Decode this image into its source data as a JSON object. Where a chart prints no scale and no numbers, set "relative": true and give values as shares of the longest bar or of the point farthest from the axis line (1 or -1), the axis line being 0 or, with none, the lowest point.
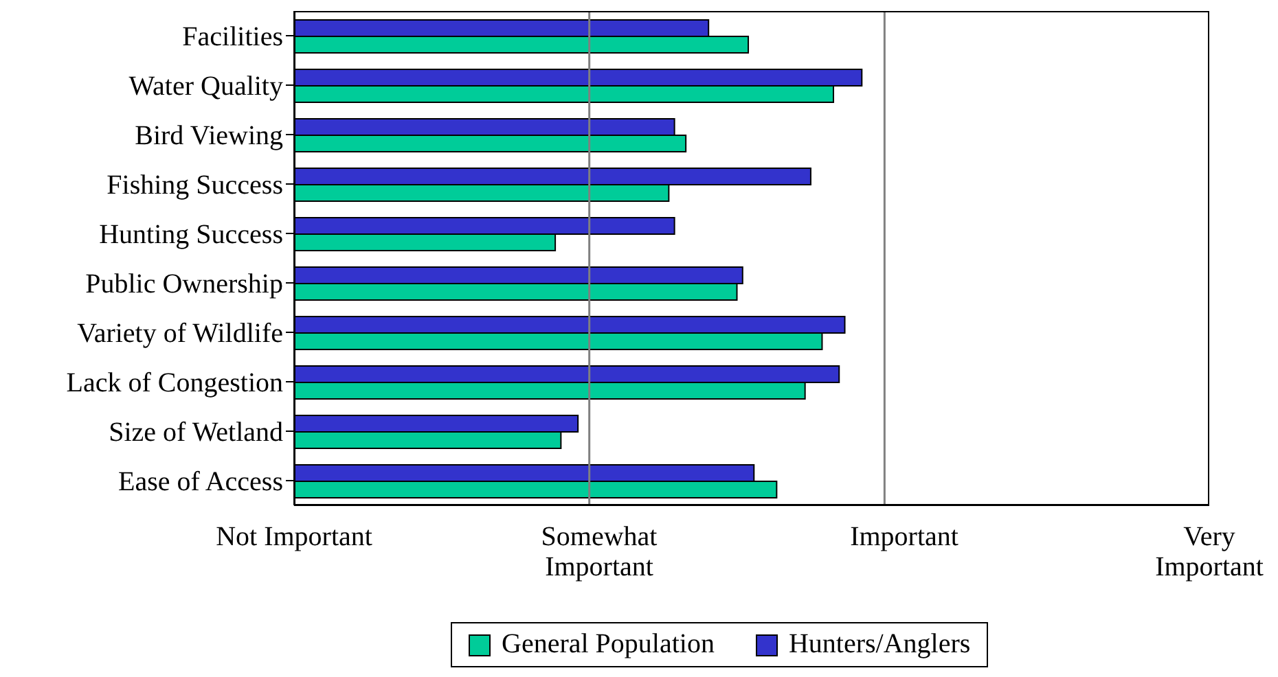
{
  "chart_data": {
    "type": "bar",
    "orientation": "horizontal",
    "relative": true,
    "categories": [
      "Facilities",
      "Water Quality",
      "Bird Viewing",
      "Fishing Success",
      "Hunting Success",
      "Public Ownership",
      "Variety of Wildlife",
      "Lack of Congestion",
      "Size of Wetland",
      "Ease of Access"
    ],
    "series": [
      {
        "name": "General Population",
        "color": "#00cc99",
        "values": [
          0.8,
          0.95,
          0.69,
          0.66,
          0.46,
          0.78,
          0.93,
          0.9,
          0.47,
          0.85
        ]
      },
      {
        "name": "Hunters/Anglers",
        "color": "#3333cc",
        "values": [
          0.73,
          1,
          0.67,
          0.91,
          0.67,
          0.79,
          0.97,
          0.96,
          0.5,
          0.81
        ]
      }
    ],
    "annotations": [
      "Not Important",
      "Somewhat\nImportant",
      "Important",
      "Very\nImportant"
    ],
    "ref_lines": [
      {
        "axis": "x",
        "value": 0.52,
        "color": "#808080"
      },
      {
        "axis": "x",
        "value": 1.04,
        "color": "#808080"
      }
    ],
    "legend": "bottom"
  }
}
